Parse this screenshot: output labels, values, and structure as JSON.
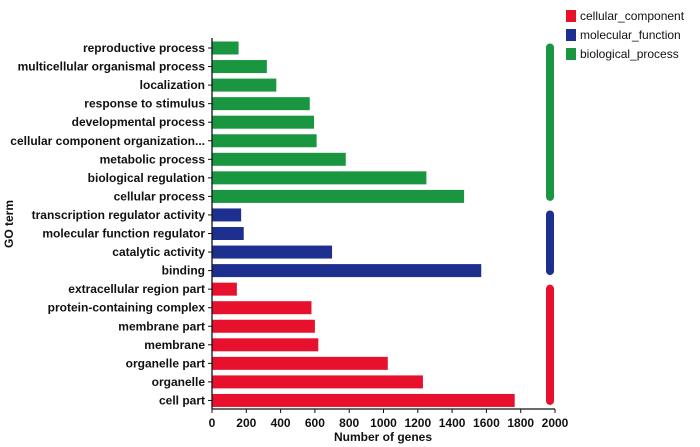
{
  "chart_data": {
    "type": "bar",
    "orientation": "horizontal",
    "title": "",
    "xlabel": "Number of genes",
    "ylabel": "GO term",
    "xlim": [
      0,
      2000
    ],
    "xticks": [
      0,
      200,
      400,
      600,
      800,
      1000,
      1200,
      1400,
      1600,
      1800,
      2000
    ],
    "grid": false,
    "legend_position": "top-right",
    "colors": {
      "cellular_component": "#e8112d",
      "molecular_function": "#1d2f8f",
      "biological_process": "#1a9641"
    },
    "series": [
      {
        "name": "biological_process",
        "categories": [
          "reproductive process",
          "multicellular organismal process",
          "localization",
          "response to stimulus",
          "developmental process",
          "cellular component organization...",
          "metabolic process",
          "biological regulation",
          "cellular process"
        ],
        "values": [
          155,
          320,
          375,
          570,
          595,
          610,
          780,
          1250,
          1470
        ]
      },
      {
        "name": "molecular_function",
        "categories": [
          "transcription regulator activity",
          "molecular function regulator",
          "catalytic activity",
          "binding"
        ],
        "values": [
          170,
          185,
          700,
          1570
        ]
      },
      {
        "name": "cellular_component",
        "categories": [
          "extracellular region part",
          "protein-containing complex",
          "membrane part",
          "membrane",
          "organelle part",
          "organelle",
          "cell part"
        ],
        "values": [
          145,
          580,
          600,
          620,
          1025,
          1230,
          1765
        ]
      }
    ],
    "legend": [
      "cellular_component",
      "molecular_function",
      "biological_process"
    ]
  }
}
